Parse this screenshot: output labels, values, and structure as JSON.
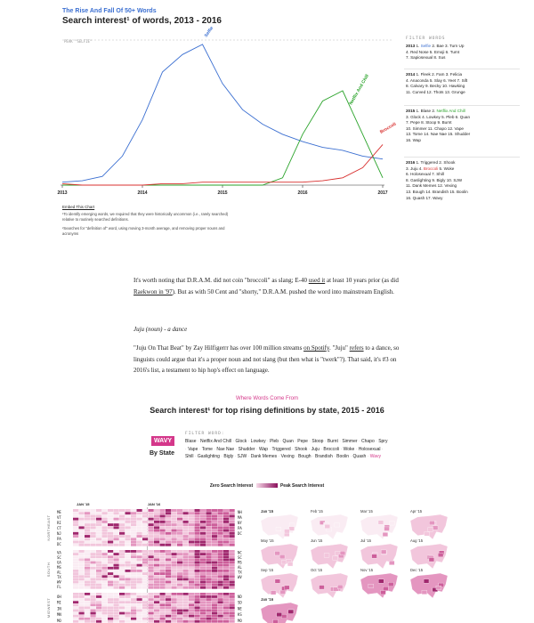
{
  "top_chart": {
    "kicker": "The Rise And Fall Of 50+ Words",
    "title": "Search interest¹ of words, 2013 - 2016",
    "peak_label": "PEAK \"SELFIE\"",
    "line_labels": [
      "Selfie",
      "Netflix And Chill",
      "Broccoli"
    ],
    "x_ticks": [
      "2013",
      "2014",
      "2015",
      "2016",
      "2017"
    ],
    "colors": {
      "selfie": "#3b6fd1",
      "netflix": "#2aa32a",
      "broccoli": "#d8302f"
    },
    "embed": "Embed This Chart",
    "footnote1": "¹To identify emerging words, we required that they were historically uncommon (i.e., rarely searched) relative to routinely searched definitions.",
    "footnote2": "²Searches for \"definition of\" word, using moving 3-month average, and removing proper nouns and acronyms"
  },
  "chart_data": {
    "type": "line",
    "title": "Search interest¹ of words, 2013 - 2016",
    "x": [
      2013.0,
      2013.25,
      2013.5,
      2013.75,
      2014.0,
      2014.25,
      2014.5,
      2014.75,
      2015.0,
      2015.25,
      2015.5,
      2015.75,
      2016.0,
      2016.25,
      2016.5,
      2016.75,
      2017.0
    ],
    "series": [
      {
        "name": "Selfie",
        "values": [
          0.02,
          0.03,
          0.06,
          0.2,
          0.45,
          0.78,
          0.9,
          0.97,
          0.7,
          0.52,
          0.42,
          0.35,
          0.3,
          0.26,
          0.24,
          0.2,
          0.18
        ]
      },
      {
        "name": "Netflix And Chill",
        "values": [
          0,
          0,
          0,
          0,
          0,
          0,
          0,
          0,
          0,
          0,
          0,
          0.05,
          0.35,
          0.58,
          0.65,
          0.35,
          0.05
        ]
      },
      {
        "name": "Broccoli",
        "values": [
          0.01,
          0.0,
          0.0,
          0.0,
          0.0,
          0.01,
          0.01,
          0.02,
          0.02,
          0.02,
          0.02,
          0.02,
          0.02,
          0.03,
          0.05,
          0.12,
          0.28
        ]
      }
    ],
    "ylim": [
      0,
      1
    ],
    "grid": false
  },
  "filter_words": {
    "header": "FILTER WORDS",
    "y2013": {
      "year": "2013",
      "rows": [
        [
          {
            "t": "1. "
          },
          {
            "t": "Selfie",
            "c": "blue"
          },
          {
            "t": " 2. Bae 3. Turn Up"
          }
        ],
        [
          {
            "t": "4. Red Nose 5. Emoji 6. Turnt"
          }
        ],
        [
          {
            "t": "7. Sapiosexual 8. Sus"
          }
        ]
      ]
    },
    "y2014": {
      "year": "2014",
      "rows": [
        [
          {
            "t": "1. Fleek 2. Fam 3. Felicia"
          }
        ],
        [
          {
            "t": "4. Anaconda 5. Slay 6. Yeet 7. Sift"
          }
        ],
        [
          {
            "t": "8. Calvary 9. Becky 10. Hawking"
          }
        ],
        [
          {
            "t": "11. Curved 12. Thots 13. Grunge"
          }
        ]
      ]
    },
    "y2015": {
      "year": "2015",
      "rows": [
        [
          {
            "t": "1. Blase 2. "
          },
          {
            "t": "Netflix And Chill",
            "c": "green"
          }
        ],
        [
          {
            "t": "3. Glock 4. Lowkey 5. Pleb 6. Quan"
          }
        ],
        [
          {
            "t": "7. Pepe 8. Stoop 9. Burnt"
          }
        ],
        [
          {
            "t": "10. Simmer 11. Chapo 12. Vape"
          }
        ],
        [
          {
            "t": "13. Tome 14. Nae Nae 15. Shudder"
          }
        ],
        [
          {
            "t": "16. Wap"
          }
        ]
      ]
    },
    "y2016": {
      "year": "2016",
      "rows": [
        [
          {
            "t": "1. Triggered 2. Shook"
          }
        ],
        [
          {
            "t": "3. Juju 4. "
          },
          {
            "t": "Broccoli",
            "c": "red"
          },
          {
            "t": " 5. Woke"
          }
        ],
        [
          {
            "t": "6. Holosexual 7. Shill"
          }
        ],
        [
          {
            "t": "8. Gaslighting 9. Bigly 10. SJW"
          }
        ],
        [
          {
            "t": "11. Dank Memes 12. Vexing"
          }
        ],
        [
          {
            "t": "13. Bough 14. Brandish 15. Boolin"
          }
        ],
        [
          {
            "t": "16. Quash 17. Wavy"
          }
        ]
      ]
    }
  },
  "article": {
    "p1": [
      {
        "t": "It's worth noting that D.R.A.M. did not coin \"broccoli\" as slang; E-40 "
      },
      {
        "t": "used it",
        "u": true
      },
      {
        "t": " at least 10 years prior (as did "
      },
      {
        "t": "Raekwon in '97",
        "u": true
      },
      {
        "t": "). But as with 50 Cent and \"shorty,\" D.R.A.M. pushed the word into mainstream English."
      }
    ],
    "subhead": "Juju (noun) - a dance",
    "p2": [
      {
        "t": "\"Juju On That Beat\" by Zay Hilfigerrr has over 100 million streams "
      },
      {
        "t": "on Spotify",
        "u": true
      },
      {
        "t": ". \"Juju\" "
      },
      {
        "t": "refers",
        "u": true
      },
      {
        "t": " to a dance, so linguists could argue that it's a proper noun and not slang (but then what is \"twerk\"?). That said, it's #3 on 2016's list, a testament to hip hop's effect on language."
      }
    ]
  },
  "state_chart": {
    "kicker": "Where Words Come From",
    "title": "Search interest¹ for top rising definitions by state, 2015 - 2016",
    "selected_word": "WAVY",
    "by_state": "By State",
    "filter_header": "FILTER WORD:",
    "words": [
      "Blase",
      "Netflix And Chill",
      "Glock",
      "Lowkey",
      "Pleb",
      "Quan",
      "Pepe",
      "Stoop",
      "Burnt",
      "Simmer",
      "Chapo",
      "Spry",
      "Vape",
      "Tome",
      "Nae Nae",
      "Shudder",
      "Wap",
      "Triggered",
      "Shook",
      "Juju",
      "Broccoli",
      "Woke",
      "Holosexual",
      "Shill",
      "Gaslighting",
      "Bigly",
      "SJW",
      "Dank Memes",
      "Vexing",
      "Bough",
      "Brandish",
      "Boolin",
      "Quash",
      "Wavy"
    ],
    "legend_zero": "Zero Search Interest",
    "legend_peak": "Peak Search Interest",
    "heat_ticks": [
      "JAN '15",
      "JAN '16"
    ],
    "regions": [
      "NORTHEAST",
      "SOUTH",
      "MIDWEST"
    ],
    "ne_states": [
      "ME",
      "VT",
      "RI",
      "CT",
      "NJ",
      "PA",
      "DC"
    ],
    "ne_states_r": [
      "NH",
      "MA",
      "NY",
      "PA",
      "DC"
    ],
    "south_states": [
      "VA",
      "SC",
      "GA",
      "MS",
      "AL",
      "TX",
      "WV",
      "FL"
    ],
    "south_states_r": [
      "NC",
      "SC",
      "MS",
      "AL",
      "TX",
      "WV"
    ],
    "mw_states": [
      "OH",
      "MI",
      "IN",
      "MN",
      "MO"
    ],
    "mw_states_r": [
      "ND",
      "SD",
      "NE",
      "KS",
      "MO"
    ],
    "map_labels": [
      "Jan '15",
      "Feb '15",
      "Mar '15",
      "Apr '15",
      "May '15",
      "Jun '15",
      "Jul '15",
      "Aug '15",
      "Sep '15",
      "Oct '15",
      "Nov '15",
      "Dec '15",
      "Jan '16"
    ],
    "colors": {
      "accent": "#d4378a"
    }
  }
}
